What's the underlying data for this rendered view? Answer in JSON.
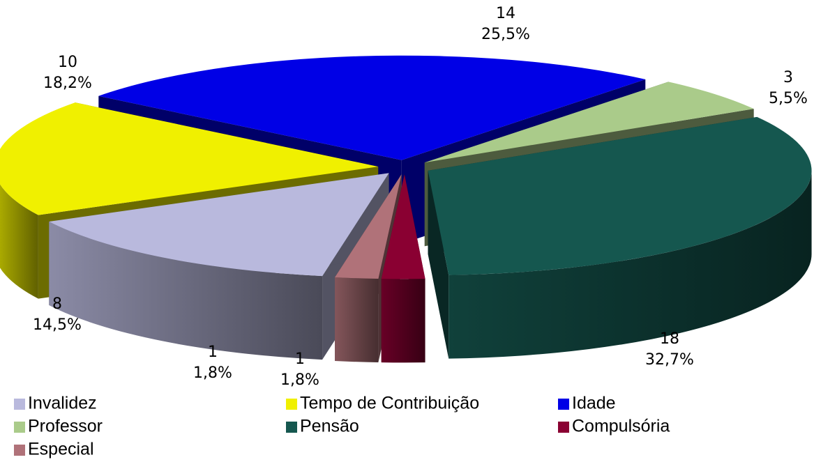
{
  "chart_data": {
    "type": "pie3d",
    "categories": [
      "Invalidez",
      "Tempo de Contribuição",
      "Idade",
      "Professor",
      "Pensão",
      "Compulsória",
      "Especial"
    ],
    "values": [
      8,
      10,
      14,
      3,
      18,
      1,
      1
    ],
    "percents": [
      14.5,
      18.2,
      25.5,
      5.5,
      32.7,
      1.8,
      1.8
    ],
    "percent_labels": [
      "14,5%",
      "18,2%",
      "25,5%",
      "5,5%",
      "32,7%",
      "1,8%",
      "1,8%"
    ],
    "colors": [
      "#b9b9dd",
      "#f0f000",
      "#0000e6",
      "#aacb8a",
      "#15574f",
      "#8a0032",
      "#b07279"
    ]
  }
}
